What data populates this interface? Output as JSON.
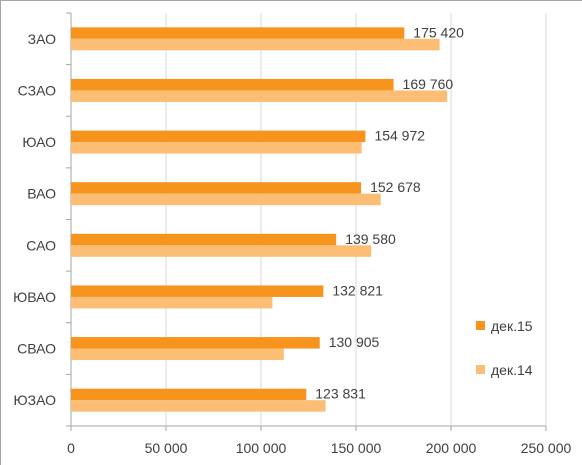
{
  "chart_data": {
    "type": "bar",
    "orientation": "horizontal",
    "categories": [
      "ЗАО",
      "СЗАО",
      "ЮАО",
      "ВАО",
      "САО",
      "ЮВАО",
      "СВАО",
      "ЮЗАО"
    ],
    "series": [
      {
        "name": "дек.15",
        "color": "#f7941d",
        "values": [
          175420,
          169760,
          154972,
          152678,
          139580,
          132821,
          130905,
          123831
        ]
      },
      {
        "name": "дек.14",
        "color": "#fbbe74",
        "values": [
          194000,
          198000,
          153000,
          163000,
          158000,
          106000,
          112000,
          134000
        ]
      }
    ],
    "data_labels": {
      "series": "дек.15",
      "text": [
        "175 420",
        "169 760",
        "154 972",
        "152 678",
        "139 580",
        "132 821",
        "130 905",
        "123 831"
      ]
    },
    "xlim": [
      0,
      250000
    ],
    "x_ticks": [
      0,
      50000,
      100000,
      150000,
      200000,
      250000
    ],
    "x_tick_labels": [
      "0",
      "50 000",
      "100 000",
      "150 000",
      "200 000",
      "250 000"
    ],
    "gridlines": "vertical",
    "legend_position": "right",
    "title": "",
    "xlabel": "",
    "ylabel": ""
  }
}
